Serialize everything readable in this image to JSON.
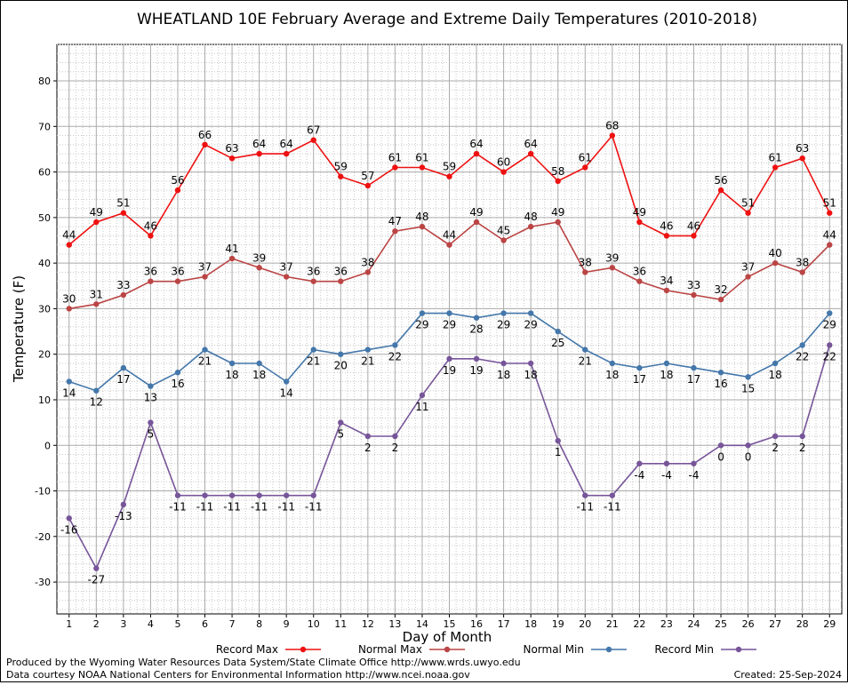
{
  "chart_data": {
    "type": "line",
    "title": "WHEATLAND 10E February Average and Extreme Daily Temperatures (2010-2018)",
    "xlabel": "Day of Month",
    "ylabel": "Temperature (F)",
    "x": [
      1,
      2,
      3,
      4,
      5,
      6,
      7,
      8,
      9,
      10,
      11,
      12,
      13,
      14,
      15,
      16,
      17,
      18,
      19,
      20,
      21,
      22,
      23,
      24,
      25,
      26,
      27,
      28,
      29
    ],
    "xlim": [
      0.55,
      29.45
    ],
    "ylim": [
      -37,
      88
    ],
    "yticks": [
      -30,
      -20,
      -10,
      0,
      10,
      20,
      30,
      40,
      50,
      60,
      70,
      80
    ],
    "grid": true,
    "legend_position": "bottom",
    "series": [
      {
        "name": "Record Max",
        "color": "#ee1111",
        "values": [
          44,
          49,
          51,
          46,
          56,
          66,
          63,
          64,
          64,
          67,
          59,
          57,
          61,
          61,
          59,
          64,
          60,
          64,
          58,
          61,
          68,
          49,
          46,
          46,
          56,
          51,
          61,
          63,
          51
        ]
      },
      {
        "name": "Normal Max",
        "color": "#bb4444",
        "values": [
          30,
          31,
          33,
          36,
          36,
          37,
          41,
          39,
          37,
          36,
          36,
          38,
          47,
          48,
          44,
          49,
          45,
          48,
          49,
          38,
          39,
          36,
          34,
          33,
          32,
          37,
          40,
          38,
          44
        ]
      },
      {
        "name": "Normal Min",
        "color": "#4477aa",
        "values": [
          14,
          12,
          17,
          13,
          16,
          21,
          18,
          18,
          14,
          21,
          20,
          21,
          22,
          29,
          29,
          28,
          29,
          29,
          25,
          21,
          18,
          17,
          18,
          17,
          16,
          15,
          18,
          22,
          29
        ]
      },
      {
        "name": "Record Min",
        "color": "#775599",
        "values": [
          -16,
          -27,
          -13,
          5,
          -11,
          -11,
          -11,
          -11,
          -11,
          -11,
          5,
          2,
          2,
          11,
          19,
          19,
          18,
          18,
          1,
          -11,
          -11,
          -4,
          -4,
          -4,
          0,
          0,
          2,
          2,
          22
        ]
      }
    ]
  },
  "footer": {
    "produced_by": "Produced by the Wyoming Water Resources Data System/State Climate Office http://www.wrds.uwyo.edu",
    "courtesy": "Data courtesy NOAA National Centers for Environmental Information http://www.ncei.noaa.gov",
    "created": "Created: 25-Sep-2024"
  }
}
